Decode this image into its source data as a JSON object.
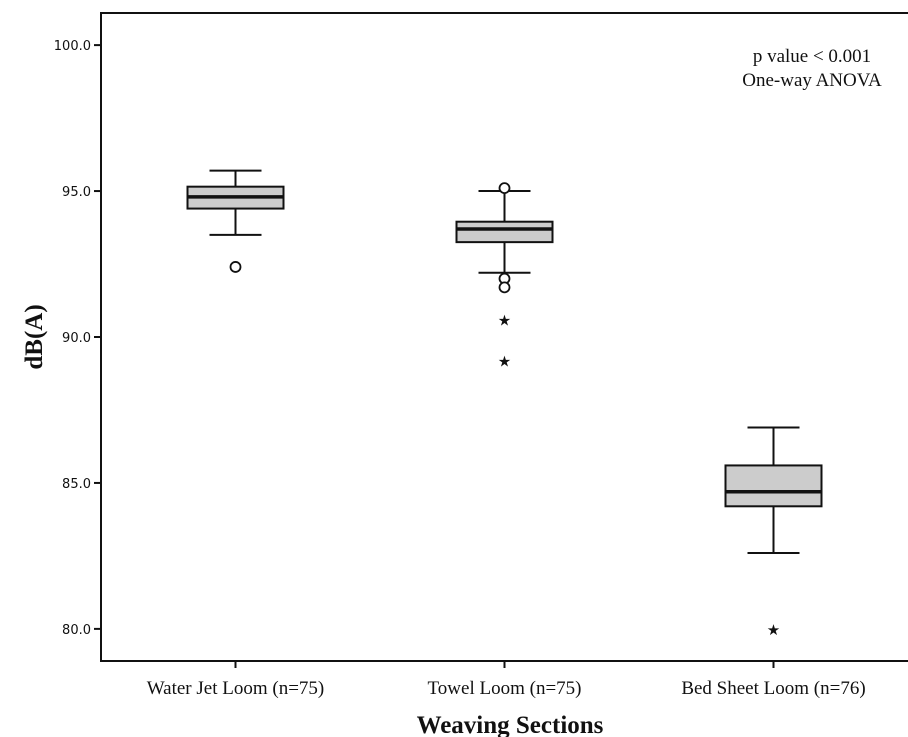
{
  "chart_data": {
    "type": "box",
    "title": "",
    "xlabel": "Weaving Sections",
    "ylabel": "dB(A)",
    "ylim": [
      78.9,
      101.1
    ],
    "yticks": [
      80.0,
      85.0,
      90.0,
      95.0,
      100.0
    ],
    "ytick_labels": [
      "80.0",
      "85.0",
      "90.0",
      "95.0",
      "100.0"
    ],
    "annotations": [
      "p value < 0.001",
      "One-way ANOVA"
    ],
    "categories": [
      "Water Jet Loom (n=75)",
      "Towel Loom (n=75)",
      "Bed Sheet Loom (n=76)"
    ],
    "boxes": [
      {
        "category": "Water Jet Loom (n=75)",
        "whisker_low": 93.5,
        "q1": 94.4,
        "median": 94.8,
        "q3": 95.15,
        "whisker_high": 95.7,
        "outliers": [
          92.4
        ],
        "extremes": []
      },
      {
        "category": "Towel Loom (n=75)",
        "whisker_low": 92.2,
        "q1": 93.25,
        "median": 93.7,
        "q3": 93.95,
        "whisker_high": 95.0,
        "outliers": [
          95.1,
          92.0,
          91.7
        ],
        "extremes": [
          90.6,
          89.2
        ]
      },
      {
        "category": "Bed Sheet Loom (n=76)",
        "whisker_low": 82.6,
        "q1": 84.2,
        "median": 84.7,
        "q3": 85.6,
        "whisker_high": 86.9,
        "outliers": [],
        "extremes": [
          80.0
        ]
      }
    ],
    "box_fill": "#cccccc",
    "line_color": "#111111",
    "grid": false
  }
}
